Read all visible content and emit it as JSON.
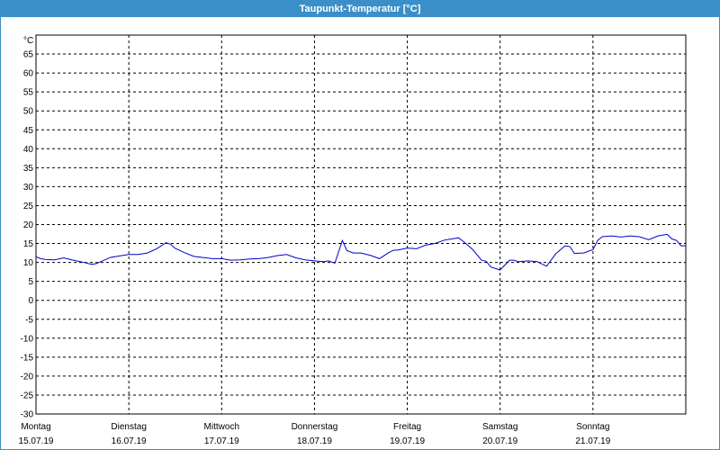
{
  "window": {
    "title": "Taupunkt-Temperatur [°C]"
  },
  "chart_data": {
    "type": "line",
    "title": "Taupunkt-Temperatur [°C]",
    "ylabel": "°C",
    "ylim": [
      -30,
      70
    ],
    "yticks": [
      65,
      60,
      55,
      50,
      45,
      40,
      35,
      30,
      25,
      20,
      15,
      10,
      5,
      0,
      -5,
      -10,
      -15,
      -20,
      -25,
      -30
    ],
    "xlim": [
      0,
      7
    ],
    "grid": true,
    "line_color": "#0000cc",
    "x_ticks": [
      {
        "day": "Montag",
        "date": "15.07.19",
        "x": 0
      },
      {
        "day": "Dienstag",
        "date": "16.07.19",
        "x": 1
      },
      {
        "day": "Mittwoch",
        "date": "17.07.19",
        "x": 2
      },
      {
        "day": "Donnerstag",
        "date": "18.07.19",
        "x": 3
      },
      {
        "day": "Freitag",
        "date": "19.07.19",
        "x": 4
      },
      {
        "day": "Samstag",
        "date": "20.07.19",
        "x": 5
      },
      {
        "day": "Sonntag",
        "date": "21.07.19",
        "x": 6
      }
    ],
    "series": [
      {
        "x": [
          0,
          0.05,
          0.1,
          0.2,
          0.3,
          0.4,
          0.5,
          0.6,
          0.65,
          0.8,
          0.9,
          1.0,
          1.1,
          1.2,
          1.3,
          1.4,
          1.45,
          1.5,
          1.6,
          1.7,
          1.8,
          1.9,
          2.0,
          2.1,
          2.2,
          2.3,
          2.4,
          2.5,
          2.6,
          2.7,
          2.8,
          2.9,
          3.0,
          3.1,
          3.15,
          3.22,
          3.3,
          3.35,
          3.42,
          3.5,
          3.6,
          3.7,
          3.8,
          3.85,
          3.9,
          4.0,
          4.1,
          4.2,
          4.3,
          4.4,
          4.5,
          4.55,
          4.6,
          4.7,
          4.8,
          4.85,
          4.9,
          5.0,
          5.1,
          5.15,
          5.2,
          5.3,
          5.4,
          5.5,
          5.6,
          5.7,
          5.75,
          5.8,
          5.9,
          6.0,
          6.05,
          6.1,
          6.2,
          6.3,
          6.4,
          6.45,
          6.5,
          6.6,
          6.7,
          6.8,
          6.85,
          6.9,
          6.95,
          7.0
        ],
        "y": [
          11.5,
          11,
          10.8,
          10.7,
          11.2,
          10.6,
          10.1,
          9.5,
          9.7,
          11.3,
          11.7,
          12.1,
          12.1,
          12.5,
          13.6,
          15.2,
          14.8,
          13.7,
          12.6,
          11.6,
          11.3,
          11.0,
          11.0,
          10.6,
          10.7,
          10.9,
          11.0,
          11.3,
          11.8,
          12.1,
          11.2,
          10.7,
          10.4,
          10.2,
          10.4,
          9.8,
          15.8,
          13.1,
          12.5,
          12.5,
          11.9,
          11.0,
          12.6,
          13.2,
          13.3,
          13.8,
          13.6,
          14.6,
          15.0,
          15.9,
          16.3,
          16.5,
          15.6,
          13.5,
          10.6,
          10.3,
          8.8,
          8.0,
          10.6,
          10.6,
          10.2,
          10.4,
          10.2,
          9.0,
          12.3,
          14.4,
          14.2,
          12.4,
          12.5,
          13.4,
          15.8,
          16.8,
          17.0,
          16.7,
          17.0,
          16.9,
          16.8,
          16.0,
          17.0,
          17.4,
          16.2,
          15.8,
          14.4,
          14.4
        ]
      }
    ]
  }
}
